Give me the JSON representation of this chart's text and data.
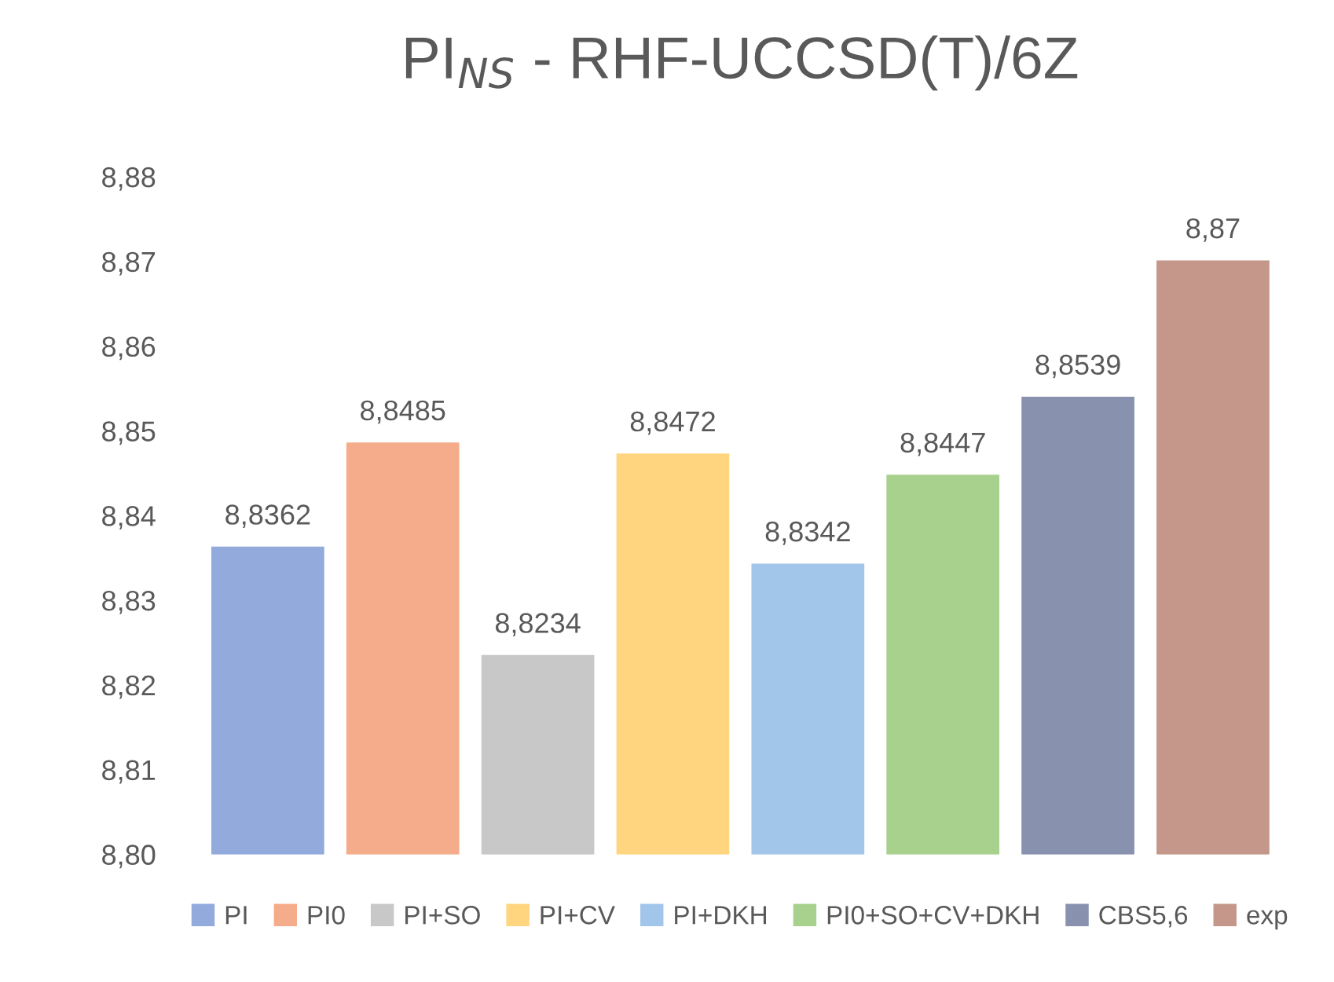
{
  "chart_data": {
    "type": "bar",
    "title": "PI$_{NS}$ - RHF-UCCSD(T)/6Z",
    "categories": [
      null
    ],
    "series": [
      {
        "name": "PI",
        "color": "#93aadd",
        "values": [
          8.8362
        ],
        "value_labels": [
          "8,8362"
        ]
      },
      {
        "name": "PI0",
        "color": "#f5ac8a",
        "values": [
          8.8485
        ],
        "value_labels": [
          "8,8485"
        ]
      },
      {
        "name": "PI+SO",
        "color": "#c8c8c8",
        "values": [
          8.8234
        ],
        "value_labels": [
          "8,8234"
        ]
      },
      {
        "name": "PI+CV",
        "color": "#ffd580",
        "values": [
          8.8472
        ],
        "value_labels": [
          "8,8472"
        ]
      },
      {
        "name": "PI+DKH",
        "color": "#a2c6ea",
        "values": [
          8.8342
        ],
        "value_labels": [
          "8,8342"
        ]
      },
      {
        "name": "PI0+SO+CV+DKH",
        "color": "#a8d18e",
        "values": [
          8.8447
        ],
        "value_labels": [
          "8,8447"
        ]
      },
      {
        "name": "CBS5,6",
        "color": "#8892ae",
        "values": [
          8.8539
        ],
        "value_labels": [
          "8,8539"
        ]
      },
      {
        "name": "exp",
        "color": "#c4978a",
        "values": [
          8.87
        ],
        "value_labels": [
          "8,87"
        ]
      }
    ],
    "ylim": [
      8.8,
      8.88
    ],
    "yticks": [
      {
        "value": 8.8,
        "label": "8,80"
      },
      {
        "value": 8.81,
        "label": "8,81"
      },
      {
        "value": 8.82,
        "label": "8,82"
      },
      {
        "value": 8.83,
        "label": "8,83"
      },
      {
        "value": 8.84,
        "label": "8,84"
      },
      {
        "value": 8.85,
        "label": "8,85"
      },
      {
        "value": 8.86,
        "label": "8,86"
      },
      {
        "value": 8.87,
        "label": "8,87"
      },
      {
        "value": 8.88,
        "label": "8,88"
      }
    ],
    "grid": false,
    "legend": "bottom"
  }
}
